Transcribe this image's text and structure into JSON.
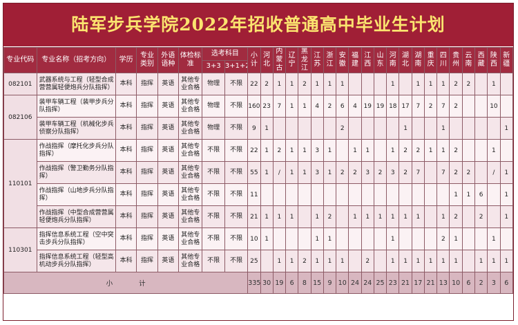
{
  "title": "陆军步兵学院2022年招收普通高中毕业生计划",
  "header": {
    "code": "专业代码",
    "name": "专业名称（招考方向）",
    "level": "学历",
    "category": "专业类别",
    "language": "外语语种",
    "physical": "体检标准",
    "subjects": "选考科目",
    "s33": "3+3",
    "s312": "3+1+2",
    "total": "小计",
    "provinces": [
      "河北",
      "内蒙古",
      "辽宁",
      "黑龙江",
      "江苏",
      "浙江",
      "安徽",
      "福建",
      "江西",
      "山东",
      "河南",
      "湖北",
      "湖南",
      "重庆",
      "四川",
      "贵州",
      "云南",
      "西藏",
      "陕西",
      "新疆"
    ]
  },
  "groups": [
    {
      "code": "082101",
      "rows": [
        {
          "name": "武器系统与工程（轻型合成营营属轻便炮兵分队指挥）",
          "level": "本科",
          "category": "指挥",
          "language": "英语",
          "physical": "其他专业合格",
          "s33": "物理",
          "s312": "不限",
          "total": "22",
          "counts": [
            "2",
            "1",
            "1",
            "2",
            "1",
            "1",
            "1",
            "",
            "",
            "",
            "1",
            "",
            "1",
            "1",
            "1",
            "2",
            "2",
            "",
            "1",
            ""
          ]
        }
      ]
    },
    {
      "code": "082106",
      "rows": [
        {
          "name": "装甲车辆工程（装甲步兵分队指挥）",
          "level": "本科",
          "category": "指挥",
          "language": "英语",
          "physical": "其他专业合格",
          "s33": "物理",
          "s312": "不限",
          "total": "160",
          "counts": [
            "23",
            "7",
            "1",
            "1",
            "4",
            "2",
            "6",
            "4",
            "19",
            "19",
            "18",
            "17",
            "7",
            "2",
            "7",
            "2",
            "",
            "",
            "10",
            ""
          ]
        },
        {
          "name": "装甲车辆工程（机械化步兵侦察分队指挥）",
          "level": "本科",
          "category": "指挥",
          "language": "英语",
          "physical": "其他专业合格",
          "s33": "物理",
          "s312": "不限",
          "total": "9",
          "counts": [
            "1",
            "",
            "",
            "",
            "",
            "",
            "2",
            "",
            "",
            "",
            "",
            "1",
            "",
            "",
            "1",
            "",
            "",
            "",
            "",
            "1"
          ]
        }
      ]
    },
    {
      "code": "110101",
      "rows": [
        {
          "name": "作战指挥（摩托化步兵分队指挥）",
          "level": "本科",
          "category": "指挥",
          "language": "英语",
          "physical": "其他专业合格",
          "s33": "不限",
          "s312": "不限",
          "total": "22",
          "counts": [
            "1",
            "2",
            "1",
            "1",
            "3",
            "1",
            "",
            "1",
            "1",
            "",
            "1",
            "2",
            "2",
            "1",
            "1",
            "2",
            "",
            "",
            "1",
            ""
          ]
        },
        {
          "name": "作战指挥（警卫勤务分队指挥）",
          "level": "本科",
          "category": "指挥",
          "language": "英语",
          "physical": "其他专业合格",
          "s33": "不限",
          "s312": "不限",
          "total": "55",
          "counts": [
            "1",
            "/",
            "1",
            "1",
            "3",
            "1",
            "2",
            "2",
            "3",
            "2",
            "3",
            "2",
            "7",
            "",
            "7",
            "2",
            "2",
            "",
            "/",
            "1"
          ]
        },
        {
          "name": "作战指挥（山地步兵分队指挥）",
          "level": "本科",
          "category": "指挥",
          "language": "英语",
          "physical": "其他专业合格",
          "s33": "不限",
          "s312": "不限",
          "total": "11",
          "counts": [
            "",
            "",
            "",
            "",
            "",
            "",
            "",
            "",
            "",
            "",
            "",
            "",
            "",
            "",
            "",
            "1",
            "1",
            "6",
            "",
            "1"
          ]
        },
        {
          "name": "作战指挥（中型合成营营属轻便炮兵分队指挥）",
          "level": "本科",
          "category": "指挥",
          "language": "英语",
          "physical": "其他专业合格",
          "s33": "不限",
          "s312": "不限",
          "total": "21",
          "counts": [
            "1",
            "1",
            "1",
            "",
            "1",
            "2",
            "",
            "1",
            "1",
            "1",
            "1",
            "1",
            "1",
            "",
            "1",
            "2",
            "",
            "2",
            "",
            "1"
          ]
        }
      ]
    },
    {
      "code": "110301",
      "rows": [
        {
          "name": "指挥信息系统工程（空中突击步兵分队指挥）",
          "level": "本科",
          "category": "指挥",
          "language": "英语",
          "physical": "其他专业合格",
          "s33": "不限",
          "s312": "不限",
          "total": "10",
          "counts": [
            "1",
            "",
            "",
            "",
            "1",
            "1",
            "",
            "",
            "",
            "",
            "1",
            "",
            "",
            "",
            "2",
            "1",
            "",
            "",
            "1",
            ""
          ]
        },
        {
          "name": "指挥信息系统工程（轻型高机动步兵分队指挥）",
          "level": "本科",
          "category": "指挥",
          "language": "英语",
          "physical": "其他专业合格",
          "s33": "不限",
          "s312": "不限",
          "total": "25",
          "counts": [
            "",
            "1",
            "1",
            "2",
            "1",
            "1",
            "1",
            "",
            "2",
            "",
            "1",
            "1",
            "1",
            "1",
            "1",
            "1",
            "",
            "1",
            "1",
            "1"
          ]
        }
      ]
    }
  ],
  "footer": {
    "label": "小　　　　计",
    "total": "335",
    "counts": [
      "30",
      "19",
      "6",
      "8",
      "15",
      "9",
      "10",
      "24",
      "24",
      "25",
      "23",
      "21",
      "17",
      "21",
      "13",
      "10",
      "6",
      "2",
      "3",
      "6"
    ]
  }
}
